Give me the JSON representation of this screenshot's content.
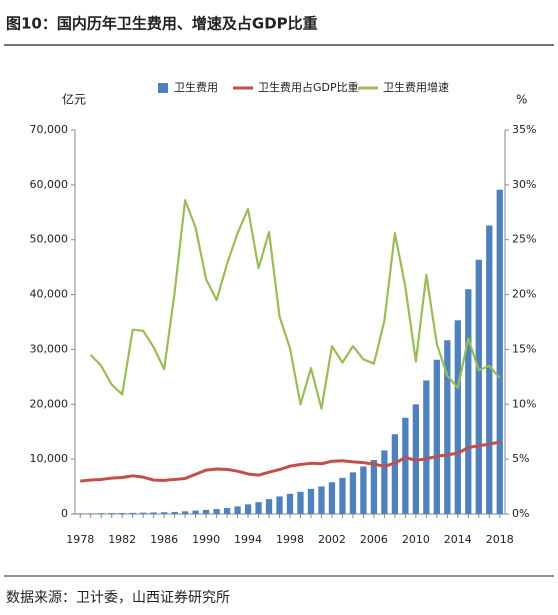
{
  "chart_data": {
    "type": "bar",
    "title": "图10：国内历年卫生费用、增速及占GDP比重",
    "source": "数据来源：卫计委，山西证券研究所",
    "y_label": "亿元",
    "y2_label": "%",
    "categories": [
      "1978",
      null,
      null,
      null,
      "1982",
      null,
      null,
      null,
      "1986",
      null,
      null,
      null,
      "1990",
      null,
      null,
      null,
      "1994",
      null,
      null,
      null,
      "1998",
      null,
      null,
      null,
      "2002",
      null,
      null,
      null,
      "2006",
      null,
      null,
      null,
      "2010",
      null,
      null,
      null,
      "2014",
      null,
      null,
      null,
      "2018"
    ],
    "series": [
      {
        "name": "卫生费用",
        "type": "bar",
        "color": "#4f81bd",
        "axis": "y",
        "values": [
          110.2,
          126.2,
          143.2,
          160.1,
          177.5,
          207.4,
          242.1,
          279.0,
          315.9,
          379.6,
          488.0,
          615.5,
          747.4,
          893.5,
          1096.9,
          1377.8,
          1761.2,
          2155.1,
          2709.4,
          3196.7,
          3678.7,
          4047.5,
          4586.6,
          5025.9,
          5790.0,
          6584.1,
          7590.3,
          8659.9,
          9843.3,
          11574.0,
          14535.4,
          17541.9,
          19980.4,
          24345.9,
          28119.0,
          31669.0,
          35312.4,
          40974.6,
          46344.9,
          52598.3,
          59121.9
        ]
      },
      {
        "name": "卫生费用占GDP比重",
        "type": "line",
        "color": "#c0504d",
        "axis": "y2",
        "values": [
          3.0,
          3.1,
          3.15,
          3.27,
          3.33,
          3.48,
          3.36,
          3.09,
          3.07,
          3.15,
          3.24,
          3.62,
          4.0,
          4.1,
          4.07,
          3.9,
          3.65,
          3.54,
          3.81,
          4.05,
          4.36,
          4.51,
          4.62,
          4.58,
          4.81,
          4.85,
          4.75,
          4.68,
          4.55,
          4.35,
          4.63,
          5.15,
          4.89,
          5.03,
          5.26,
          5.39,
          5.55,
          6.05,
          6.23,
          6.36,
          6.57
        ]
      },
      {
        "name": "卫生费用增速",
        "type": "line",
        "color": "#9bbb59",
        "axis": "y2",
        "values": [
          null,
          14.5,
          13.5,
          11.8,
          10.9,
          16.8,
          16.7,
          15.2,
          13.2,
          20.2,
          28.6,
          26.1,
          21.4,
          19.5,
          22.8,
          25.6,
          27.8,
          22.4,
          25.7,
          18.0,
          15.1,
          10.0,
          13.3,
          9.6,
          15.3,
          13.8,
          15.3,
          14.1,
          13.7,
          17.6,
          25.6,
          20.7,
          13.9,
          21.8,
          15.5,
          12.6,
          11.5,
          16.0,
          13.1,
          13.5,
          12.4
        ]
      }
    ],
    "ylim": [
      0,
      70000
    ],
    "yticks": [
      0,
      {
        "value": 10000,
        "label": "10,000"
      },
      {
        "value": 20000,
        "label": "20,000"
      },
      {
        "value": 30000,
        "label": "30,000"
      },
      {
        "value": 40000,
        "label": "40,000"
      },
      {
        "value": 50000,
        "label": "50,000"
      },
      {
        "value": 60000,
        "label": "60,000"
      },
      {
        "value": 70000,
        "label": "70,000"
      }
    ],
    "y2lim": [
      0,
      35
    ],
    "y2ticks": [
      {
        "value": 0,
        "label": "0%"
      },
      {
        "value": 5,
        "label": "5%"
      },
      {
        "value": 10,
        "label": "10%"
      },
      {
        "value": 15,
        "label": "15%"
      },
      {
        "value": 20,
        "label": "20%"
      },
      {
        "value": 25,
        "label": "25%"
      },
      {
        "value": 30,
        "label": "30%"
      },
      {
        "value": 35,
        "label": "35%"
      }
    ],
    "grid": false
  }
}
